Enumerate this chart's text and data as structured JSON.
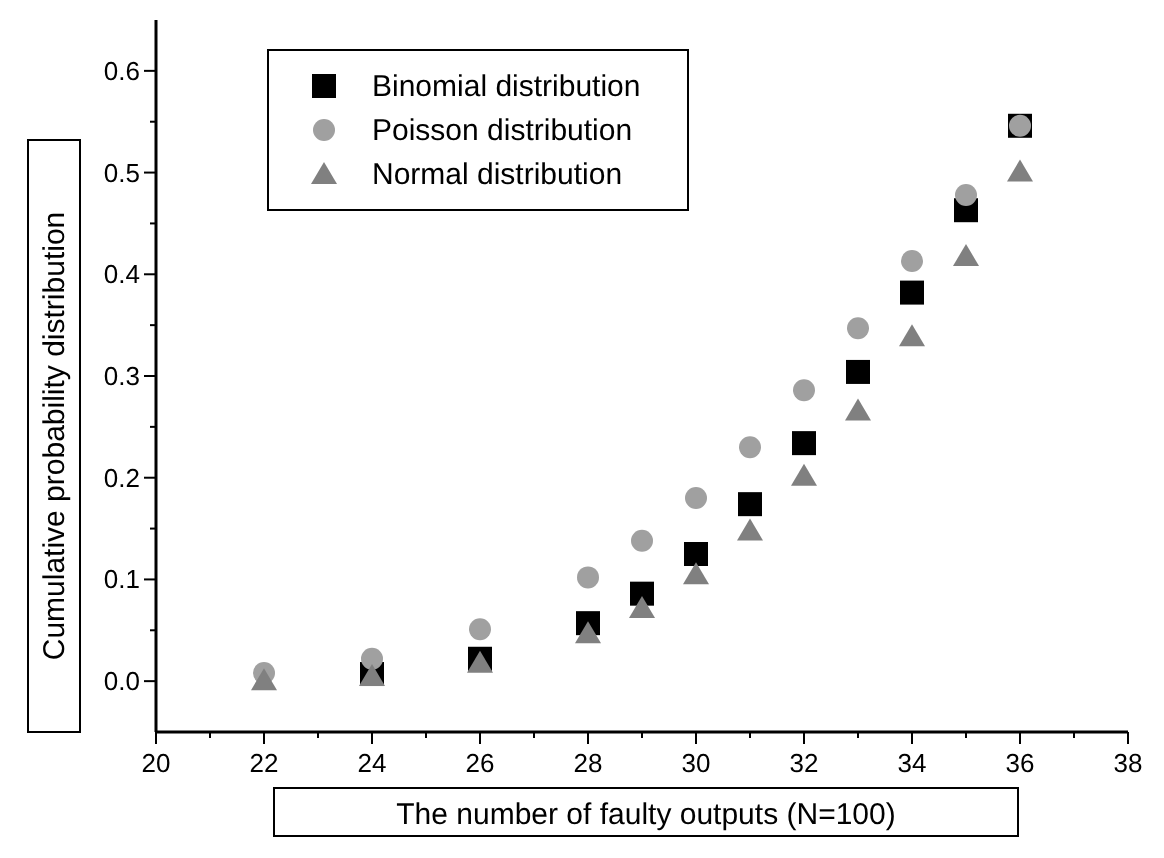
{
  "chart_data": {
    "type": "scatter",
    "xlabel": "The number of faulty outputs (N=100)",
    "ylabel": "Cumulative probability distribution",
    "x": [
      22,
      24,
      26,
      28,
      29,
      30,
      31,
      32,
      33,
      34,
      35,
      36
    ],
    "series": [
      {
        "name": "Binomial distribution",
        "color": "#000000",
        "marker": "square",
        "values": [
          null,
          0.007,
          0.022,
          0.057,
          0.086,
          0.125,
          0.174,
          0.234,
          0.304,
          0.382,
          0.463,
          0.546
        ]
      },
      {
        "name": "Poisson distribution",
        "color": "#a0a0a0",
        "marker": "circle",
        "values": [
          0.008,
          0.022,
          0.051,
          0.102,
          0.138,
          0.18,
          0.23,
          0.286,
          0.347,
          0.413,
          0.478,
          0.546
        ]
      },
      {
        "name": "Normal distribution",
        "color": "#808080",
        "marker": "triangle",
        "values": [
          0.001,
          0.005,
          0.018,
          0.047,
          0.072,
          0.105,
          0.148,
          0.202,
          0.266,
          0.339,
          0.418,
          0.501
        ]
      }
    ],
    "xlim": [
      20,
      38
    ],
    "xticks": [
      20,
      22,
      24,
      26,
      28,
      30,
      32,
      34,
      36,
      38
    ],
    "ylim": [
      -0.05,
      0.65
    ],
    "yticks": [
      {
        "value": 0,
        "label": "0.0"
      },
      0.1,
      0.2,
      0.3,
      0.4,
      0.5,
      0.6
    ],
    "legend": "top left",
    "grid": false
  }
}
